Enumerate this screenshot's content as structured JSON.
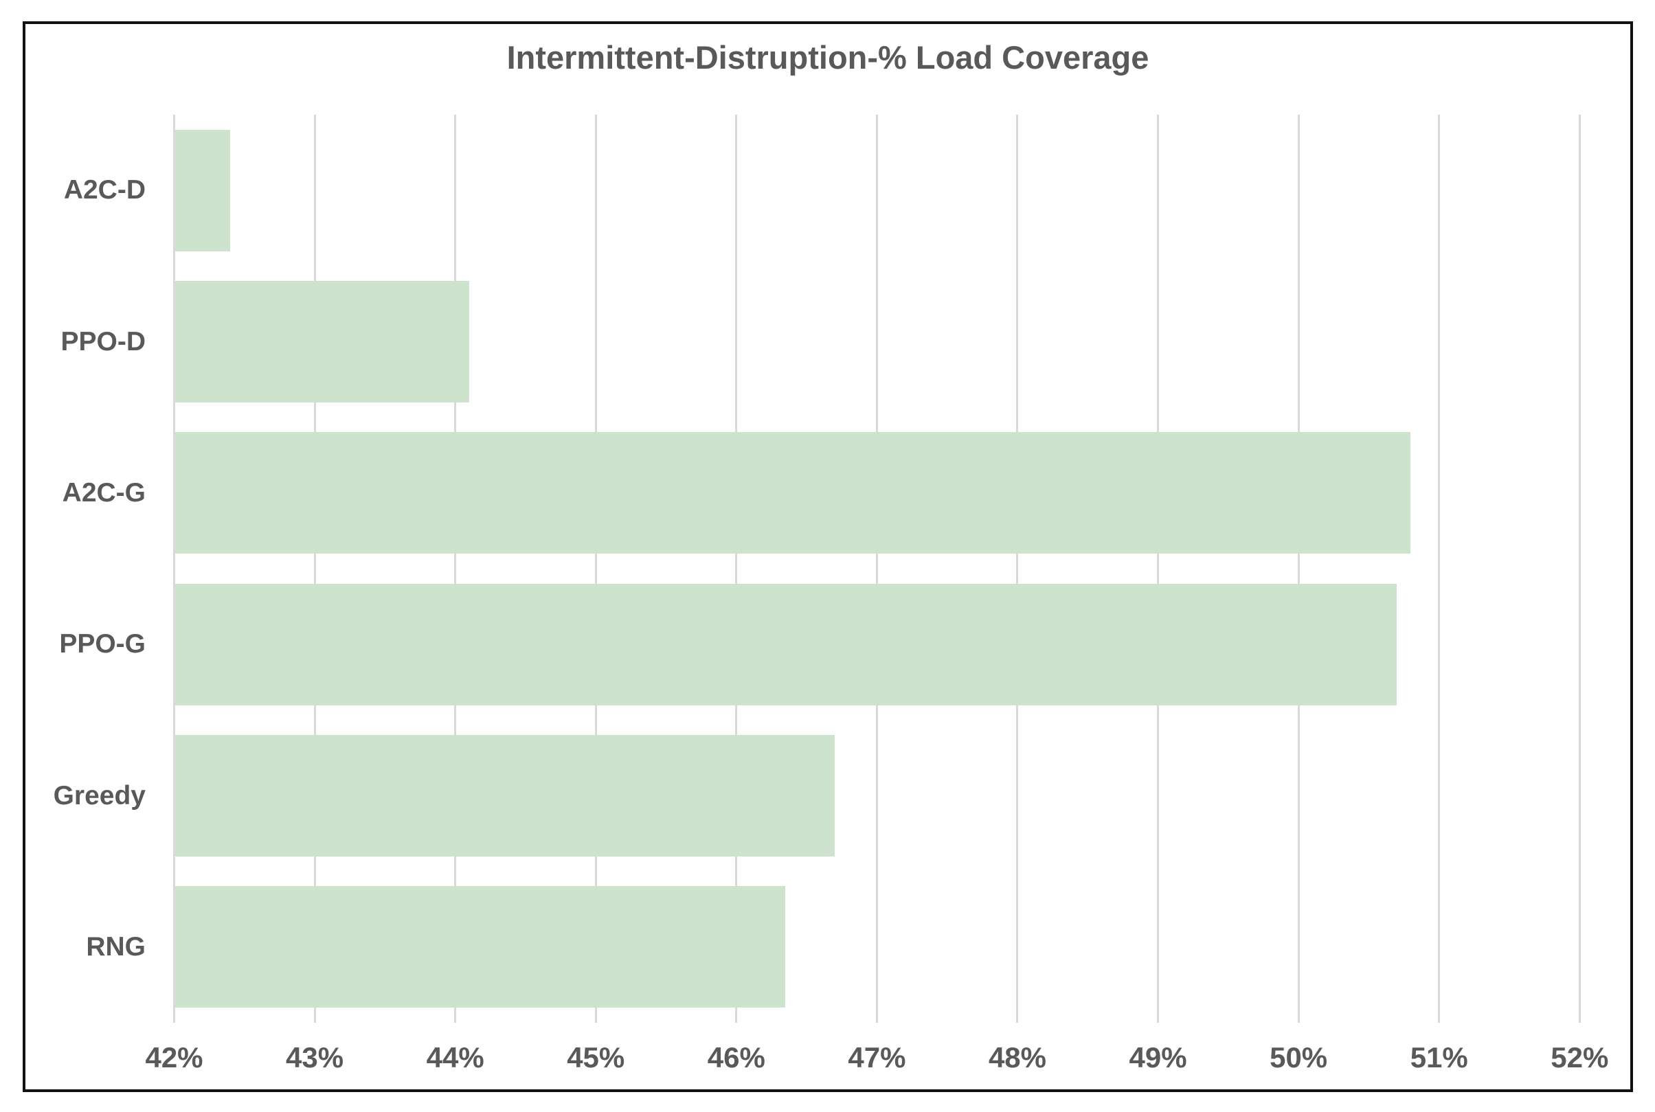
{
  "chart": {
    "title": "Intermittent-Distruption-% Load Coverage"
  },
  "chart_data": {
    "type": "bar",
    "orientation": "horizontal",
    "title": "Intermittent-Distruption-% Load Coverage",
    "categories": [
      "A2C-D",
      "PPO-D",
      "A2C-G",
      "PPO-G",
      "Greedy",
      "RNG"
    ],
    "values": [
      42.4,
      44.1,
      50.8,
      50.7,
      46.7,
      46.35
    ],
    "value_unit": "%",
    "xlabel": "",
    "ylabel": "",
    "xlim": [
      42,
      52
    ],
    "x_ticks": [
      42,
      43,
      44,
      45,
      46,
      47,
      48,
      49,
      50,
      51,
      52
    ],
    "x_tick_labels": [
      "42%",
      "43%",
      "44%",
      "45%",
      "46%",
      "47%",
      "48%",
      "49%",
      "50%",
      "51%",
      "52%"
    ],
    "grid": true,
    "legend": false,
    "colors": {
      "bar_fill": "#cee3ce",
      "gridline": "#d9d9d9",
      "text": "#595959",
      "frame_border": "#111111",
      "background": "#ffffff"
    }
  }
}
